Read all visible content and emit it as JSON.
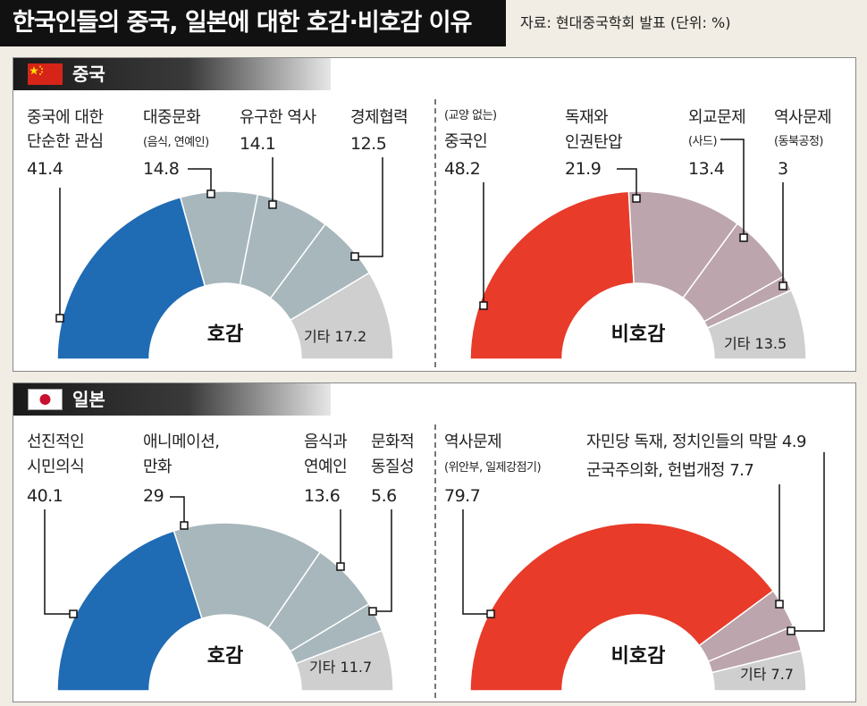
{
  "title": "한국인들의 중국, 일본에 대한 호감·비호감 이유",
  "source_note": "자료: 현대중국학회 발표   (단위: %)",
  "colors": {
    "favor_main": "#1f6bb4",
    "favor_sub": "#a7b7bc",
    "unfavor_main": "#e83b2a",
    "unfavor_sub": "#bca5ac",
    "other": "#cfcfcf"
  },
  "sections": {
    "china": {
      "label": "중국"
    },
    "japan": {
      "label": "일본"
    }
  },
  "chart_data": [
    {
      "type": "donut",
      "title": "중국 호감",
      "center_label": "호감",
      "slices": [
        {
          "label": "중국에 대한 단순한 관심",
          "value": 41.4
        },
        {
          "label": "대중문화 (음식, 연예인)",
          "value": 14.8
        },
        {
          "label": "유구한 역사",
          "value": 14.1
        },
        {
          "label": "경제협력",
          "value": 12.5
        },
        {
          "label": "기타",
          "value": 17.2
        }
      ],
      "texts": {
        "s0_l1": "중국에 대한",
        "s0_l2": "단순한 관심",
        "s0_v": "41.4",
        "s1_l1": "대중문화",
        "s1_l2": "(음식, 연예인)",
        "s1_v": "14.8",
        "s2_l1": "유구한 역사",
        "s2_v": "14.1",
        "s3_l1": "경제협력",
        "s3_v": "12.5",
        "other": "기타 17.2"
      }
    },
    {
      "type": "donut",
      "title": "중국 비호감",
      "center_label": "비호감",
      "slices": [
        {
          "label": "(교양 없는) 중국인",
          "value": 48.2
        },
        {
          "label": "독재와 인권탄압",
          "value": 21.9
        },
        {
          "label": "외교문제 (사드)",
          "value": 13.4
        },
        {
          "label": "역사문제 (동북공정)",
          "value": 3
        },
        {
          "label": "기타",
          "value": 13.5
        }
      ],
      "texts": {
        "s0_l1": "(교양 없는)",
        "s0_l2": "중국인",
        "s0_v": "48.2",
        "s1_l1": "독재와",
        "s1_l2": "인권탄압",
        "s1_v": "21.9",
        "s2_l1": "외교문제",
        "s2_l2": "(사드)",
        "s2_v": "13.4",
        "s3_l1": "역사문제",
        "s3_l2": "(동북공정)",
        "s3_v": "3",
        "other": "기타 13.5"
      }
    },
    {
      "type": "donut",
      "title": "일본 호감",
      "center_label": "호감",
      "slices": [
        {
          "label": "선진적인 시민의식",
          "value": 40.1
        },
        {
          "label": "애니메이션, 만화",
          "value": 29
        },
        {
          "label": "음식과 연예인",
          "value": 13.6
        },
        {
          "label": "문화적 동질성",
          "value": 5.6
        },
        {
          "label": "기타",
          "value": 11.7
        }
      ],
      "texts": {
        "s0_l1": "선진적인",
        "s0_l2": "시민의식",
        "s0_v": "40.1",
        "s1_l1": "애니메이션,",
        "s1_l2": "만화",
        "s1_v": "29",
        "s2_l1": "음식과",
        "s2_l2": "연예인",
        "s2_v": "13.6",
        "s3_l1": "문화적",
        "s3_l2": "동질성",
        "s3_v": "5.6",
        "other": "기타 11.7"
      }
    },
    {
      "type": "donut",
      "title": "일본 비호감",
      "center_label": "비호감",
      "slices": [
        {
          "label": "역사문제 (위안부, 일제강점기)",
          "value": 79.7
        },
        {
          "label": "군국주의화, 헌법개정",
          "value": 7.7
        },
        {
          "label": "자민당 독재, 정치인들의 막말",
          "value": 4.9
        },
        {
          "label": "기타",
          "value": 7.7
        }
      ],
      "texts": {
        "s0_l1": "역사문제",
        "s0_l2": "(위안부, 일제강점기)",
        "s0_v": "79.7",
        "s1_line": "군국주의화, 헌법개정 7.7",
        "s2_line": "자민당 독재, 정치인들의 막말 4.9",
        "other": "기타 7.7"
      }
    }
  ]
}
